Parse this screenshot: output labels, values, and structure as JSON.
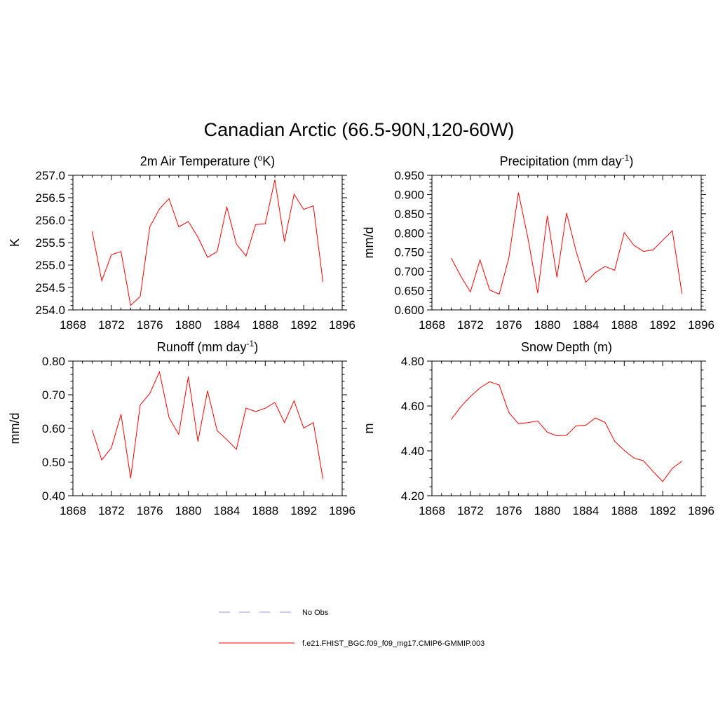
{
  "figure_title": "Canadian Arctic (66.5-90N,120-60W)",
  "legend": [
    {
      "label": "No Obs",
      "style": "dashed",
      "color": "#9999ff"
    },
    {
      "label": "f.e21.FHIST_BGC.f09_f09_mg17.CMIP6-GMMIP.003",
      "style": "solid",
      "color": "#ff0000"
    }
  ],
  "chart_data": [
    {
      "type": "line",
      "title": "2m Air Temperature (",
      "title_sup": "o",
      "title_after": "K)",
      "xlabel": "",
      "ylabel": "K",
      "xlim": [
        1868,
        1896
      ],
      "ylim": [
        254.0,
        257.0
      ],
      "xticks": [
        1868,
        1872,
        1876,
        1880,
        1884,
        1888,
        1892,
        1896
      ],
      "yticks": [
        254.0,
        254.5,
        255.0,
        255.5,
        256.0,
        256.5,
        257.0
      ],
      "ytick_decimals": 1,
      "color": "#ff0000",
      "x": [
        1870,
        1871,
        1872,
        1873,
        1874,
        1875,
        1876,
        1877,
        1878,
        1879,
        1880,
        1881,
        1882,
        1883,
        1884,
        1885,
        1886,
        1887,
        1888,
        1889,
        1890,
        1891,
        1892,
        1893,
        1894
      ],
      "y": [
        255.75,
        254.65,
        255.23,
        255.3,
        254.1,
        254.3,
        255.85,
        256.25,
        256.48,
        255.85,
        255.97,
        255.62,
        255.17,
        255.3,
        256.3,
        255.47,
        255.2,
        255.9,
        255.92,
        256.9,
        255.52,
        256.58,
        256.24,
        256.32,
        254.62
      ]
    },
    {
      "type": "line",
      "title": "Precipitation (mm day",
      "title_sup": "-1",
      "title_after": ")",
      "xlabel": "",
      "ylabel": "mm/d",
      "xlim": [
        1868,
        1896
      ],
      "ylim": [
        0.6,
        0.95
      ],
      "xticks": [
        1868,
        1872,
        1876,
        1880,
        1884,
        1888,
        1892,
        1896
      ],
      "yticks": [
        0.6,
        0.65,
        0.7,
        0.75,
        0.8,
        0.85,
        0.9,
        0.95
      ],
      "ytick_decimals": 3,
      "color": "#ff0000",
      "x": [
        1870,
        1871,
        1872,
        1873,
        1874,
        1875,
        1876,
        1877,
        1878,
        1879,
        1880,
        1881,
        1882,
        1883,
        1884,
        1885,
        1886,
        1887,
        1888,
        1889,
        1890,
        1891,
        1892,
        1893,
        1894
      ],
      "y": [
        0.735,
        0.688,
        0.647,
        0.73,
        0.652,
        0.641,
        0.735,
        0.905,
        0.785,
        0.644,
        0.845,
        0.685,
        0.852,
        0.752,
        0.672,
        0.697,
        0.713,
        0.703,
        0.801,
        0.768,
        0.752,
        0.756,
        0.781,
        0.806,
        0.642
      ]
    },
    {
      "type": "line",
      "title": "Runoff (mm day",
      "title_sup": "-1",
      "title_after": ")",
      "xlabel": "",
      "ylabel": "mm/d",
      "xlim": [
        1868,
        1896
      ],
      "ylim": [
        0.4,
        0.8
      ],
      "xticks": [
        1868,
        1872,
        1876,
        1880,
        1884,
        1888,
        1892,
        1896
      ],
      "yticks": [
        0.4,
        0.5,
        0.6,
        0.7,
        0.8
      ],
      "ytick_decimals": 2,
      "color": "#ff0000",
      "x": [
        1870,
        1871,
        1872,
        1873,
        1874,
        1875,
        1876,
        1877,
        1878,
        1879,
        1880,
        1881,
        1882,
        1883,
        1884,
        1885,
        1886,
        1887,
        1888,
        1889,
        1890,
        1891,
        1892,
        1893,
        1894
      ],
      "y": [
        0.595,
        0.506,
        0.542,
        0.642,
        0.452,
        0.67,
        0.704,
        0.768,
        0.632,
        0.582,
        0.754,
        0.561,
        0.712,
        0.593,
        0.567,
        0.538,
        0.66,
        0.65,
        0.66,
        0.677,
        0.617,
        0.682,
        0.601,
        0.617,
        0.45
      ]
    },
    {
      "type": "line",
      "title": "Snow Depth (m)",
      "title_sup": "",
      "title_after": "",
      "xlabel": "",
      "ylabel": "m",
      "xlim": [
        1868,
        1896
      ],
      "ylim": [
        4.2,
        4.8
      ],
      "xticks": [
        1868,
        1872,
        1876,
        1880,
        1884,
        1888,
        1892,
        1896
      ],
      "yticks": [
        4.2,
        4.4,
        4.6,
        4.8
      ],
      "ytick_decimals": 2,
      "color": "#ff0000",
      "x": [
        1870,
        1871,
        1872,
        1873,
        1874,
        1875,
        1876,
        1877,
        1878,
        1879,
        1880,
        1881,
        1882,
        1883,
        1884,
        1885,
        1886,
        1887,
        1888,
        1889,
        1890,
        1891,
        1892,
        1893,
        1894
      ],
      "y": [
        4.54,
        4.596,
        4.642,
        4.681,
        4.708,
        4.693,
        4.571,
        4.521,
        4.526,
        4.533,
        4.483,
        4.467,
        4.469,
        4.512,
        4.514,
        4.547,
        4.527,
        4.443,
        4.402,
        4.368,
        4.356,
        4.308,
        4.263,
        4.322,
        4.354
      ]
    }
  ]
}
